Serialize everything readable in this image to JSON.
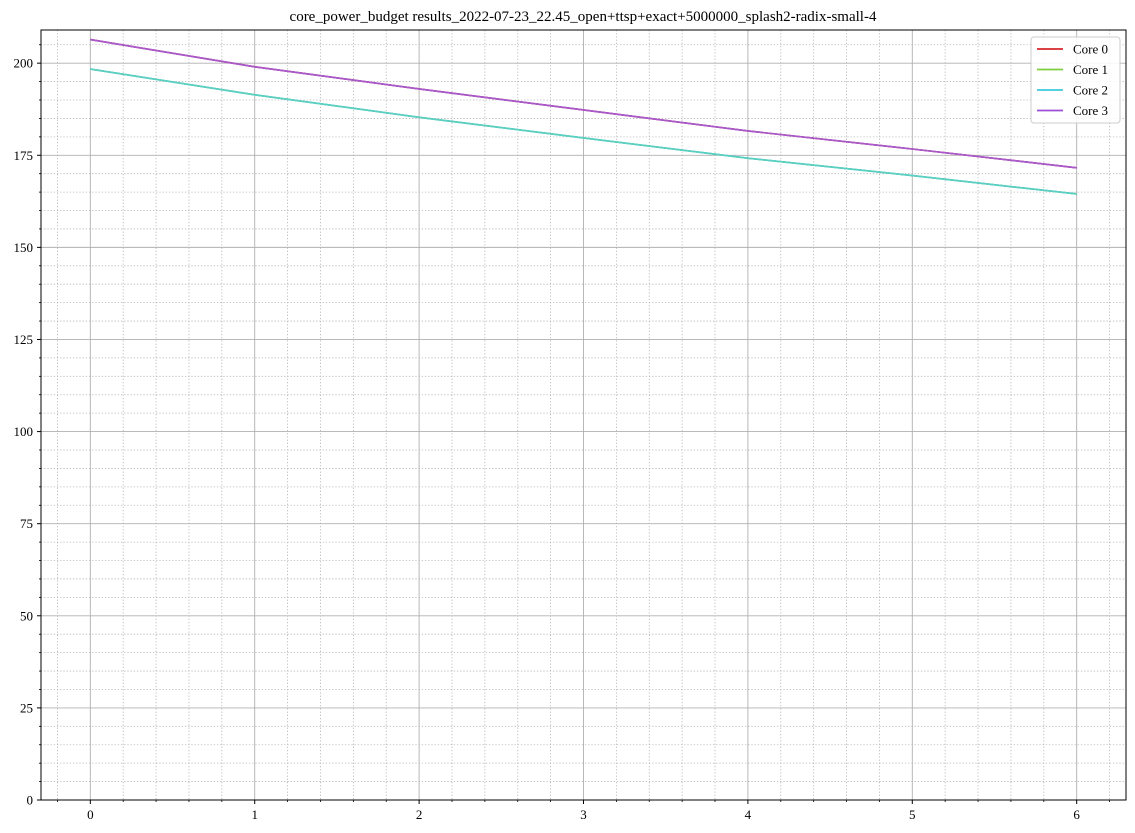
{
  "chart_data": {
    "type": "line",
    "title": "core_power_budget results_2022-07-23_22.45_open+ttsp+exact+5000000_splash2-radix-small-4",
    "xlabel": "",
    "ylabel": "",
    "xlim": [
      -0.3,
      6.3
    ],
    "ylim": [
      0,
      209
    ],
    "x_ticks": [
      0,
      1,
      2,
      3,
      4,
      5,
      6
    ],
    "y_ticks": [
      0,
      25,
      50,
      75,
      100,
      125,
      150,
      175,
      200
    ],
    "x_minor_step": 0.2,
    "y_minor_step": 5,
    "grid": true,
    "legend_position": "top-right",
    "x": [
      0,
      1,
      2,
      3,
      4,
      5,
      6
    ],
    "series": [
      {
        "name": "Core 0",
        "color": "#d62728",
        "values": [
          206.4,
          199.0,
          193.0,
          187.3,
          181.6,
          176.7,
          171.6
        ]
      },
      {
        "name": "Core 1",
        "color": "#7fce3c",
        "values": [
          198.4,
          191.4,
          185.3,
          179.7,
          174.2,
          169.5,
          164.5
        ]
      },
      {
        "name": "Core 2",
        "color": "#3dc9dc",
        "values": [
          198.4,
          191.4,
          185.3,
          179.7,
          174.2,
          169.5,
          164.5
        ]
      },
      {
        "name": "Core 3",
        "color": "#9c4fd6",
        "values": [
          206.4,
          199.0,
          193.0,
          187.3,
          181.6,
          176.7,
          171.6
        ]
      }
    ],
    "overlay_colors": {
      "Core 0+Core 3": "#a95ac8",
      "Core 1+Core 2": "#5ccfc4"
    }
  }
}
